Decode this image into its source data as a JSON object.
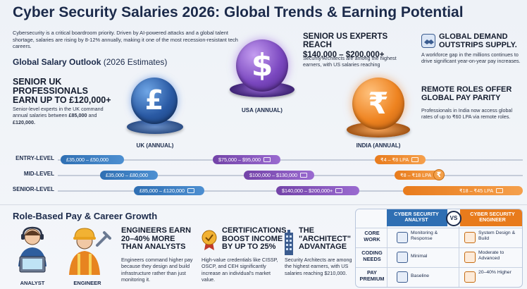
{
  "title": "Cyber Security Salaries 2026: Global Trends & Earning Potential",
  "intro": "Cybersecurity is a critical boardroom priority. Driven by AI-powered attacks and a global talent shortage, salaries are rising by 8-12% annually, making it one of the most recession-resistant tech careers.",
  "outlook": {
    "title": "Global Salary Outlook",
    "suffix": "(2026 Estimates)"
  },
  "uk_callout": {
    "heading": "SENIOR UK PROFESSIONALS EARN UP TO £120,000+",
    "body_start": "Senior-level experts in the UK command annual salaries between ",
    "low": "£85,000",
    "mid": " and ",
    "high": "£120,000."
  },
  "us_callout": {
    "heading_line1": "SENIOR US EXPERTS REACH",
    "heading_line2": "$140,000 – $200,000+",
    "body": "Security Architects are among the highest earners, with US salaries reaching"
  },
  "demand_callout": {
    "heading": "GLOBAL DEMAND OUTSTRIPS SUPPLY.",
    "body": "A workforce gap in the millions continues to drive significant year-on-year pay increases."
  },
  "remote_callout": {
    "heading": "REMOTE ROLES OFFER GLOBAL PAY PARITY",
    "body": "Professionals in India now access global rates of up to ₹60 LPA via remote roles."
  },
  "regions": {
    "uk": {
      "label": "UK (ANNUAL)",
      "symbol": "£"
    },
    "us": {
      "label": "USA (ANNUAL)",
      "symbol": "$"
    },
    "in": {
      "label": "INDIA (ANNUAL)",
      "symbol": "₹"
    }
  },
  "salary_rows": [
    {
      "level": "ENTRY-LEVEL",
      "uk": "£35,000 – £50,000",
      "us": "$75,000 – $95,000",
      "in": "₹4 – ₹8 LPA"
    },
    {
      "level": "MID-LEVEL",
      "uk": "£35,000 – £80,000",
      "us": "$100,000 – $130,000",
      "in": "₹8 – ₹18 LPA"
    },
    {
      "level": "SENIOR-LEVEL",
      "uk": "£85,000 – £120,000",
      "us": "$140,000 – $200,000+",
      "in": "₹18 – ₹45 LPA"
    }
  ],
  "role_section": {
    "title": "Role-Based Pay & Career Growth",
    "analyst_label": "ANALYST",
    "engineer_label": "ENGINEER"
  },
  "engineers_callout": {
    "heading": "ENGINEERS EARN 20–40% MORE THAN ANALYSTS",
    "body": "Engineers command higher pay because they design and build infrastructure rather than just monitoring it."
  },
  "certs_callout": {
    "heading": "CERTIFICATIONS BOOST INCOME BY UP TO 25%",
    "body": "High-value credentials like CISSP, OSCP, and CEH significantly increase an individual's market value."
  },
  "architect_callout": {
    "heading": "THE \"ARCHITECT\" ADVANTAGE",
    "body": "Security Architects are among the highest earners, with US salaries reaching $210,000."
  },
  "comparison": {
    "col_analyst": "CYBER SECURITY ANALYST",
    "vs": "VS",
    "col_engineer": "CYBER SECURITY ENGINEER",
    "rows": [
      {
        "label": "CORE WORK",
        "analyst": "Monitoring & Response",
        "engineer": "System Design & Build"
      },
      {
        "label": "CODING NEEDS",
        "analyst": "Minimal",
        "engineer": "Moderate to Advanced"
      },
      {
        "label": "PAY PREMIUM",
        "analyst": "Baseline",
        "engineer": "20–40% Higher"
      }
    ]
  },
  "colors": {
    "uk": "#2f6fb3",
    "us": "#7343a8",
    "india": "#e87b1c",
    "navy": "#1b2a4a"
  }
}
